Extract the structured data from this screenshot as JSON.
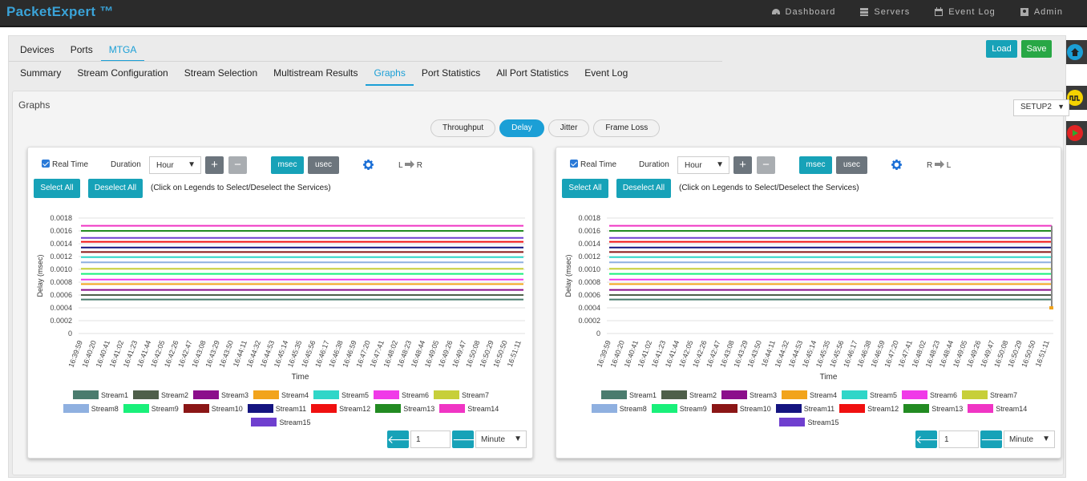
{
  "app": {
    "title": "PacketExpert ™"
  },
  "topnav": [
    {
      "label": "Dashboard",
      "icon": "dashboard-icon"
    },
    {
      "label": "Servers",
      "icon": "servers-icon"
    },
    {
      "label": "Event Log",
      "icon": "calendar-icon"
    },
    {
      "label": "Admin",
      "icon": "user-icon"
    }
  ],
  "tabs1": [
    "Devices",
    "Ports",
    "MTGA"
  ],
  "tabs1_active": 2,
  "tabs2": [
    "Summary",
    "Stream Configuration",
    "Stream Selection",
    "Multistream Results",
    "Graphs",
    "Port Statistics",
    "All Port Statistics",
    "Event Log"
  ],
  "tabs2_active": 4,
  "buttons": {
    "load": "Load",
    "save": "Save"
  },
  "panel": {
    "title": "Graphs",
    "setup": "SETUP2"
  },
  "graph_tabs": [
    "Throughput",
    "Delay",
    "Jitter",
    "Frame Loss"
  ],
  "graph_tabs_active": 1,
  "controls": {
    "realtime": "Real Time",
    "duration_label": "Duration",
    "duration_value": "Hour",
    "msec": "msec",
    "usec": "usec",
    "select_all": "Select All",
    "deselect_all": "Deselect All",
    "hint": "(Click on Legends to Select/Deselect the Services)",
    "plus": "+",
    "minus": "−",
    "page": "1",
    "unit": "Minute"
  },
  "charts": [
    {
      "dir_from": "L",
      "dir_to": "R"
    },
    {
      "dir_from": "R",
      "dir_to": "L"
    }
  ],
  "colors": {
    "accent": "#1b9fd6",
    "teal": "#17a2b8",
    "green": "#28a745",
    "gray_btn": "#6c757d",
    "light_btn": "#9ea3a7"
  },
  "chart_data": [
    {
      "type": "line",
      "title": "",
      "xlabel": "Time",
      "ylabel": "Delay (msec)",
      "ylim": [
        0,
        0.0018
      ],
      "yticks": [
        "0.0018",
        "0.0016",
        "0.0014",
        "0.0012",
        "0.0010",
        "0.0008",
        "0.0006",
        "0.0004",
        "0.0002",
        "0"
      ],
      "x": [
        "16:39:59",
        "16:40:20",
        "16:40:41",
        "16:41:02",
        "16:41:23",
        "16:41:44",
        "16:42:05",
        "16:42:26",
        "16:42:47",
        "16:43:08",
        "16:43:29",
        "16:43:50",
        "16:44:11",
        "16:44:32",
        "16:44:53",
        "16:45:14",
        "16:45:35",
        "16:45:56",
        "16:46:17",
        "16:46:38",
        "16:46:59",
        "16:47:20",
        "16:47:41",
        "16:48:02",
        "16:48:23",
        "16:48:44",
        "16:49:05",
        "16:49:26",
        "16:49:47",
        "16:50:08",
        "16:50:29",
        "16:50:50",
        "16:51:11"
      ],
      "series": [
        {
          "name": "Stream1",
          "color": "#4a7c6e",
          "value": 0.00053
        },
        {
          "name": "Stream2",
          "color": "#4f5f4a",
          "value": 0.0006
        },
        {
          "name": "Stream3",
          "color": "#8b0e8b",
          "value": 0.00068
        },
        {
          "name": "Stream4",
          "color": "#f2a41c",
          "value": 0.00077
        },
        {
          "name": "Stream5",
          "color": "#2fd6c8",
          "value": 0.00119
        },
        {
          "name": "Stream6",
          "color": "#f03ae8",
          "value": 0.00084
        },
        {
          "name": "Stream7",
          "color": "#c7cf3a",
          "value": 0.00101
        },
        {
          "name": "Stream8",
          "color": "#8fb0e0",
          "value": 0.00111
        },
        {
          "name": "Stream9",
          "color": "#19f07a",
          "value": 0.00093
        },
        {
          "name": "Stream10",
          "color": "#8b1616",
          "value": 0.00127
        },
        {
          "name": "Stream11",
          "color": "#141480",
          "value": 0.00134
        },
        {
          "name": "Stream12",
          "color": "#f01010",
          "value": 0.00143
        },
        {
          "name": "Stream13",
          "color": "#228b22",
          "value": 0.0016
        },
        {
          "name": "Stream14",
          "color": "#f035c4",
          "value": 0.00168
        },
        {
          "name": "Stream15",
          "color": "#6f3fcf",
          "value": 0.00149
        }
      ]
    },
    {
      "type": "line",
      "title": "",
      "xlabel": "Time",
      "ylabel": "Delay (msec)",
      "ylim": [
        0,
        0.0018
      ],
      "yticks": [
        "0.0018",
        "0.0016",
        "0.0014",
        "0.0012",
        "0.0010",
        "0.0008",
        "0.0006",
        "0.0004",
        "0.0002",
        "0"
      ],
      "x": [
        "16:39:59",
        "16:40:20",
        "16:40:41",
        "16:41:02",
        "16:41:23",
        "16:41:44",
        "16:42:05",
        "16:42:26",
        "16:42:47",
        "16:43:08",
        "16:43:29",
        "16:43:50",
        "16:44:11",
        "16:44:32",
        "16:44:53",
        "16:45:14",
        "16:45:35",
        "16:45:56",
        "16:46:17",
        "16:46:38",
        "16:46:59",
        "16:47:20",
        "16:47:41",
        "16:48:02",
        "16:48:23",
        "16:48:44",
        "16:49:05",
        "16:49:26",
        "16:49:47",
        "16:50:08",
        "16:50:29",
        "16:50:50",
        "16:51:11"
      ],
      "series": [
        {
          "name": "Stream1",
          "color": "#4a7c6e",
          "value": 0.00053
        },
        {
          "name": "Stream2",
          "color": "#4f5f4a",
          "value": 0.0006
        },
        {
          "name": "Stream3",
          "color": "#8b0e8b",
          "value": 0.00068
        },
        {
          "name": "Stream4",
          "color": "#f2a41c",
          "value": 0.00077
        },
        {
          "name": "Stream5",
          "color": "#2fd6c8",
          "value": 0.00119
        },
        {
          "name": "Stream6",
          "color": "#f03ae8",
          "value": 0.00084
        },
        {
          "name": "Stream7",
          "color": "#c7cf3a",
          "value": 0.00101
        },
        {
          "name": "Stream8",
          "color": "#8fb0e0",
          "value": 0.00111
        },
        {
          "name": "Stream9",
          "color": "#19f07a",
          "value": 0.00093
        },
        {
          "name": "Stream10",
          "color": "#8b1616",
          "value": 0.00127
        },
        {
          "name": "Stream11",
          "color": "#141480",
          "value": 0.00134
        },
        {
          "name": "Stream12",
          "color": "#f01010",
          "value": 0.00143
        },
        {
          "name": "Stream13",
          "color": "#228b22",
          "value": 0.0016
        },
        {
          "name": "Stream14",
          "color": "#f035c4",
          "value": 0.00168
        },
        {
          "name": "Stream15",
          "color": "#6f3fcf",
          "value": 0.00149
        }
      ]
    }
  ]
}
